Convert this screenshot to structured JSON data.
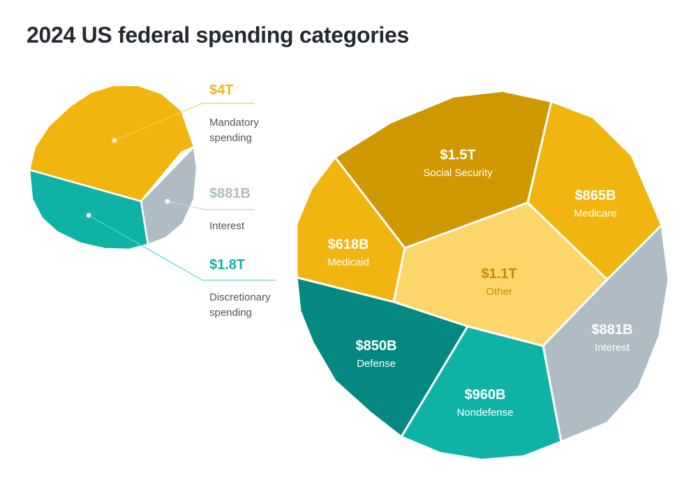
{
  "title": "2024 US federal spending categories",
  "chart_data": [
    {
      "type": "pie",
      "slices": [
        {
          "value": "$4T",
          "label_lines": [
            "Mandatory",
            "spending"
          ],
          "color": "#f0b50f",
          "value_color": "#f0b50f"
        },
        {
          "value": "$881B",
          "label_lines": [
            "Interest"
          ],
          "color": "#afbcc3",
          "value_color": "#afbcc3"
        },
        {
          "value": "$1.8T",
          "label_lines": [
            "Discretionary",
            "spending"
          ],
          "color": "#0fb3a6",
          "value_color": "#0fb3a6"
        }
      ],
      "label_color": "#4a5560"
    },
    {
      "type": "voronoi-treemap",
      "cells": [
        {
          "value": "$1.5T",
          "label": "Social Security",
          "color": "#cf9700",
          "text_color": "#ffffff"
        },
        {
          "value": "$865B",
          "label": "Medicare",
          "color": "#f0b50f",
          "text_color": "#ffffff"
        },
        {
          "value": "$618B",
          "label": "Medicaid",
          "color": "#f0b50f",
          "text_color": "#ffffff"
        },
        {
          "value": "$1.1T",
          "label": "Other",
          "color": "#fdd66b",
          "text_color": "#c38d00"
        },
        {
          "value": "$881B",
          "label": "Interest",
          "color": "#afbcc3",
          "text_color": "#ffffff"
        },
        {
          "value": "$850B",
          "label": "Defense",
          "color": "#05887f",
          "text_color": "#ffffff"
        },
        {
          "value": "$960B",
          "label": "Nondefense",
          "color": "#0fb3a6",
          "text_color": "#ffffff"
        }
      ]
    }
  ]
}
